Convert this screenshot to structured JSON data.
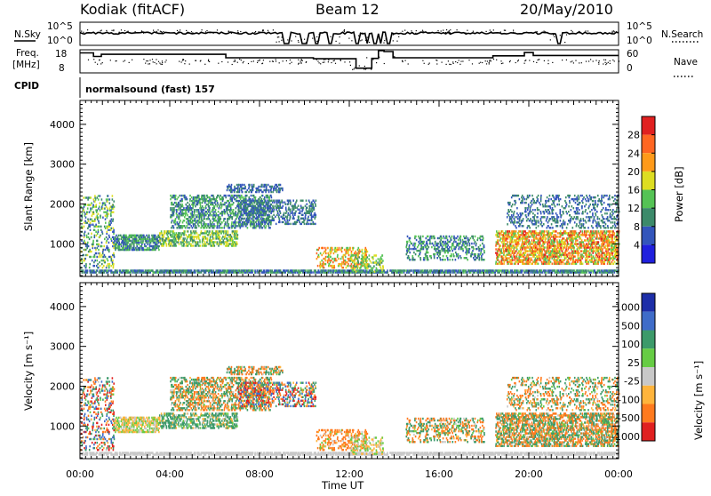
{
  "header": {
    "title": "Kodiak (fitACF)",
    "beam": "Beam 12",
    "date": "20/May/2010"
  },
  "top_panels": {
    "noise": {
      "left_label": "N.Sky",
      "right_label": "N.Search",
      "ticks_left": [
        "10^5",
        "10^0"
      ],
      "ticks_right": [
        "10^5",
        "10^0"
      ],
      "sky_drops": [
        [
          9.1,
          9.3
        ],
        [
          9.9,
          10.1
        ],
        [
          10.45,
          10.65
        ],
        [
          11.05,
          11.2
        ],
        [
          12.3,
          12.45
        ],
        [
          12.75,
          12.85
        ],
        [
          13.05,
          13.2
        ],
        [
          13.35,
          13.45
        ],
        [
          13.65,
          13.85
        ],
        [
          21.3,
          21.45
        ]
      ]
    },
    "freq": {
      "left_label_1": "Freq.",
      "left_label_2": "[MHz]",
      "right_label": "Nave",
      "ticks_left": [
        "18",
        "8"
      ],
      "ticks_right": [
        "60",
        "0"
      ],
      "freq_steps": [
        [
          0.0,
          0.6,
          17.3
        ],
        [
          0.6,
          0.95,
          15.5
        ],
        [
          0.95,
          6.5,
          16.6
        ],
        [
          6.5,
          10.4,
          14.8
        ],
        [
          10.4,
          12.3,
          14.3
        ],
        [
          12.3,
          13.0,
          9.5
        ],
        [
          13.0,
          13.3,
          14.5
        ],
        [
          13.3,
          13.55,
          18.5
        ],
        [
          13.55,
          13.95,
          18.0
        ],
        [
          13.95,
          18.4,
          14.8
        ],
        [
          18.4,
          19.8,
          15.8
        ],
        [
          19.8,
          20.2,
          17.5
        ],
        [
          20.2,
          24.0,
          16.0
        ]
      ]
    },
    "cpid": {
      "label": "CPID",
      "text": "normalsound (fast) 157"
    }
  },
  "panels": [
    {
      "ylabel": "Slant Range [km]",
      "colorbar_label": "Power [dB]",
      "colorbar_ticks": [
        "4",
        "8",
        "12",
        "16",
        "20",
        "24",
        "28"
      ],
      "colorbar_range": [
        0,
        32
      ],
      "colors": [
        "#2020dd",
        "#3355bb",
        "#3c8a6a",
        "#55c355",
        "#dddd22",
        "#ff9a1a",
        "#ff6622",
        "#e02020"
      ]
    },
    {
      "ylabel": "Velocity [m s⁻¹]",
      "colorbar_label": "Velocity [m s⁻¹]",
      "colorbar_ticks": [
        "1000",
        "500",
        "100",
        "25",
        "-25",
        "-100",
        "-500",
        "-1000"
      ],
      "colors": [
        "#1d2ea8",
        "#3f6cc8",
        "#3c9a6a",
        "#66cc44",
        "#c8c8c8",
        "#ffb43c",
        "#ff7a1e",
        "#e02020"
      ]
    }
  ],
  "chart_data": {
    "type": "heatmap",
    "title": "Kodiak (fitACF)",
    "subtitle": "Beam 12",
    "date": "20/May/2010",
    "xlabel": "Time UT",
    "x_ticks": [
      "00:00",
      "04:00",
      "08:00",
      "12:00",
      "16:00",
      "20:00",
      "00:00"
    ],
    "xlim_hours": [
      0,
      24
    ],
    "ylabel": "Slant Range [km]",
    "y_ticks": [
      1000,
      2000,
      3000,
      4000
    ],
    "ylim": [
      180,
      4600
    ],
    "power_scale": {
      "label": "Power [dB]",
      "ticks": [
        4,
        8,
        12,
        16,
        20,
        24,
        28
      ],
      "range": [
        0,
        32
      ]
    },
    "velocity_scale": {
      "label": "Velocity [m s⁻¹]",
      "levels": [
        1000,
        500,
        100,
        25,
        -25,
        -100,
        -500,
        -1000
      ]
    },
    "echo_regions": [
      {
        "t": [
          0.0,
          24.0
        ],
        "r": [
          280,
          330
        ],
        "density": 0.75,
        "power_range": [
          4,
          14
        ],
        "vel_range": [
          -25,
          25
        ]
      },
      {
        "t": [
          1.5,
          3.5
        ],
        "r": [
          850,
          1200
        ],
        "density": 0.55,
        "power_range": [
          4,
          16
        ],
        "vel_range": [
          -100,
          100
        ]
      },
      {
        "t": [
          3.5,
          7.0
        ],
        "r": [
          950,
          1300
        ],
        "density": 0.45,
        "power_range": [
          8,
          20
        ],
        "vel_range": [
          -100,
          500
        ]
      },
      {
        "t": [
          4.0,
          8.5
        ],
        "r": [
          1400,
          2200
        ],
        "density": 0.35,
        "power_range": [
          4,
          16
        ],
        "vel_range": [
          -500,
          500
        ]
      },
      {
        "t": [
          6.5,
          9.0
        ],
        "r": [
          2300,
          2500
        ],
        "density": 0.4,
        "power_range": [
          4,
          10
        ],
        "vel_range": [
          -500,
          500
        ]
      },
      {
        "t": [
          7.0,
          10.5
        ],
        "r": [
          1500,
          2100
        ],
        "density": 0.3,
        "power_range": [
          4,
          12
        ],
        "vel_range": [
          -1000,
          1000
        ]
      },
      {
        "t": [
          10.5,
          12.8
        ],
        "r": [
          400,
          900
        ],
        "density": 0.3,
        "power_range": [
          12,
          28
        ],
        "vel_range": [
          -500,
          100
        ]
      },
      {
        "t": [
          12.0,
          13.5
        ],
        "r": [
          300,
          700
        ],
        "density": 0.25,
        "power_range": [
          8,
          20
        ],
        "vel_range": [
          -100,
          100
        ]
      },
      {
        "t": [
          14.5,
          18.0
        ],
        "r": [
          600,
          1200
        ],
        "density": 0.25,
        "power_range": [
          4,
          16
        ],
        "vel_range": [
          -500,
          500
        ]
      },
      {
        "t": [
          18.5,
          24.0
        ],
        "r": [
          500,
          1300
        ],
        "density": 0.5,
        "power_range": [
          12,
          30
        ],
        "vel_range": [
          -500,
          500
        ]
      },
      {
        "t": [
          19.0,
          24.0
        ],
        "r": [
          1400,
          2200
        ],
        "density": 0.2,
        "power_range": [
          4,
          12
        ],
        "vel_range": [
          -500,
          500
        ]
      },
      {
        "t": [
          0.0,
          1.5
        ],
        "r": [
          400,
          2200
        ],
        "density": 0.2,
        "power_range": [
          4,
          20
        ],
        "vel_range": [
          -1000,
          1000
        ]
      }
    ]
  }
}
